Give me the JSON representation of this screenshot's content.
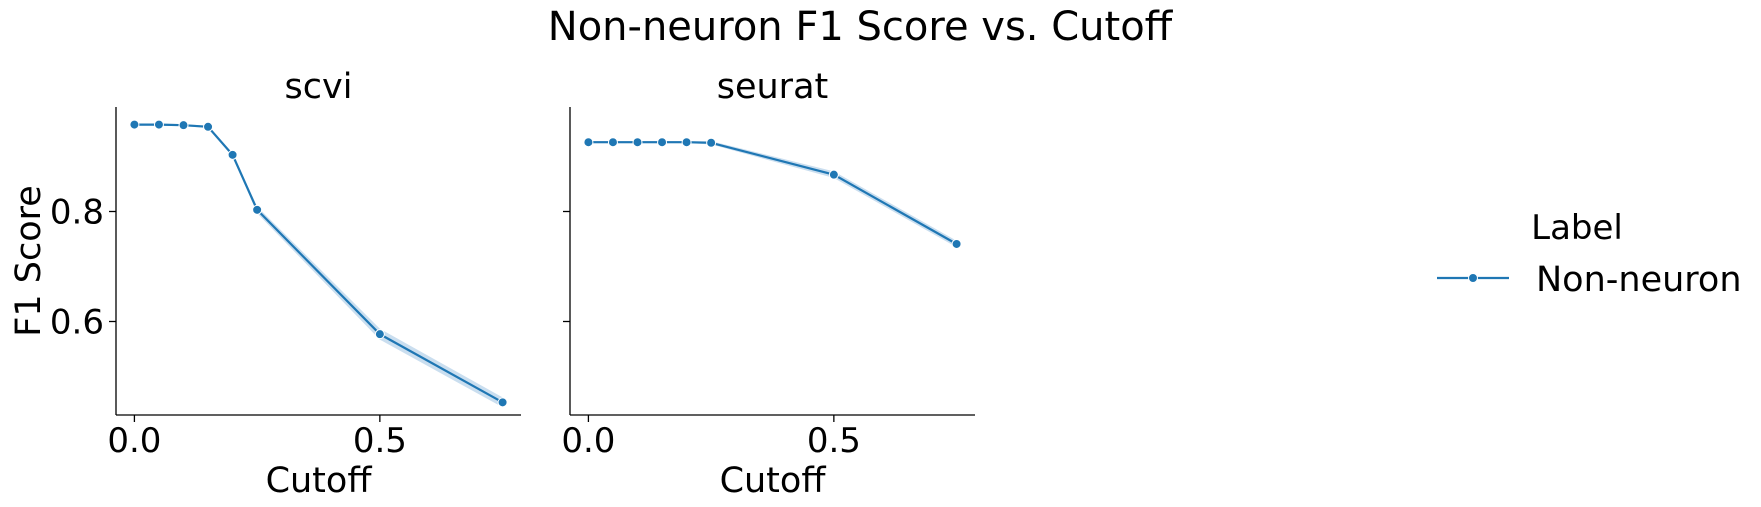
{
  "colors": {
    "series": "#1f77b4",
    "band": "#a6c8e4",
    "axis": "#000000",
    "background": "#ffffff"
  },
  "chart_data": {
    "type": "line",
    "title": "Non-neuron F1 Score vs. Cutoff",
    "ylabel": "F1 Score",
    "xlabel": "Cutoff",
    "shared_y": true,
    "ylim": [
      0.43,
      0.99
    ],
    "y_ticks": [
      0.6,
      0.8
    ],
    "y_tick_labels": [
      "0.6",
      "0.8"
    ],
    "x_ticks": [
      0.0,
      0.5
    ],
    "x_tick_labels": [
      "0.0",
      "0.5"
    ],
    "xlim": [
      -0.0375,
      0.7875
    ],
    "grid": false,
    "marker": "circle",
    "legend": {
      "title": "Label",
      "placement": "right",
      "entries": [
        "Non-neuron"
      ]
    },
    "panels": [
      {
        "title": "scvi",
        "series": [
          {
            "name": "Non-neuron",
            "x": [
              0.0,
              0.05,
              0.1,
              0.15,
              0.2,
              0.25,
              0.5,
              0.75
            ],
            "y": [
              0.958,
              0.958,
              0.957,
              0.954,
              0.903,
              0.803,
              0.577,
              0.453
            ],
            "y_low": [
              0.956,
              0.956,
              0.955,
              0.952,
              0.9,
              0.797,
              0.567,
              0.444
            ],
            "y_high": [
              0.96,
              0.96,
              0.959,
              0.956,
              0.906,
              0.809,
              0.587,
              0.462
            ]
          }
        ]
      },
      {
        "title": "seurat",
        "series": [
          {
            "name": "Non-neuron",
            "x": [
              0.0,
              0.05,
              0.1,
              0.15,
              0.2,
              0.25,
              0.5,
              0.75
            ],
            "y": [
              0.926,
              0.926,
              0.926,
              0.926,
              0.926,
              0.925,
              0.867,
              0.741
            ],
            "y_low": [
              0.924,
              0.924,
              0.924,
              0.924,
              0.924,
              0.922,
              0.861,
              0.735
            ],
            "y_high": [
              0.928,
              0.928,
              0.928,
              0.928,
              0.928,
              0.928,
              0.873,
              0.747
            ]
          }
        ]
      }
    ]
  }
}
